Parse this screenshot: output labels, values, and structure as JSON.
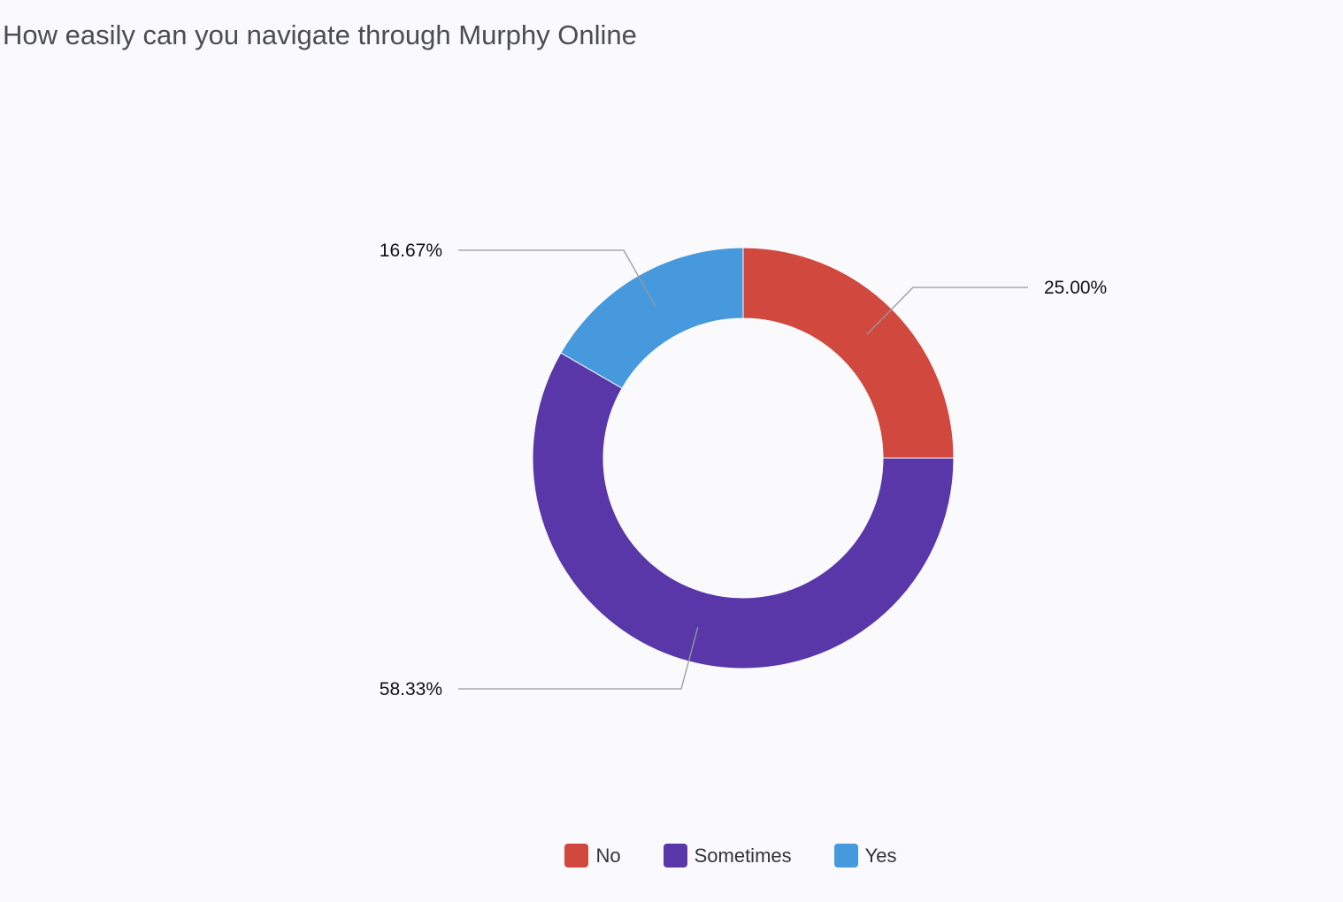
{
  "chart_data": {
    "type": "pie",
    "variant": "donut",
    "title": "How easily can you navigate through Murphy Online",
    "categories": [
      "No",
      "Sometimes",
      "Yes"
    ],
    "values": [
      25.0,
      58.33,
      16.67
    ],
    "labels": [
      "25.00%",
      "58.33%",
      "16.67%"
    ],
    "colors": [
      "#d0483e",
      "#5937a9",
      "#4699dd"
    ],
    "legend_position": "bottom"
  }
}
